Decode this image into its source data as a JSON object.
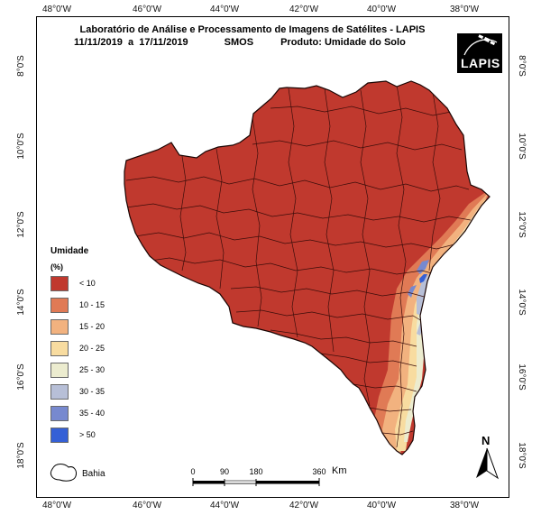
{
  "header": {
    "title": "Laboratório de Análise e Processamento de Imagens de Satélites - LAPIS",
    "period_start": "11/11/2019",
    "period_sep": "a",
    "period_end": "17/11/2019",
    "sensor": "SMOS",
    "product": "Produto: Umidade do Solo"
  },
  "logo": {
    "text": "LAPIS"
  },
  "axes": {
    "longitude_ticks": [
      "48°0'W",
      "46°0'W",
      "44°0'W",
      "42°0'W",
      "40°0'W",
      "38°0'W"
    ],
    "latitude_ticks": [
      "8°0'S",
      "10°0'S",
      "12°0'S",
      "14°0'S",
      "16°0'S",
      "18°0'S"
    ]
  },
  "legend": {
    "title": "Umidade",
    "unit": "(%)",
    "classes": [
      {
        "label": "< 10",
        "color": "#c0392e"
      },
      {
        "label": "10 - 15",
        "color": "#e07a55"
      },
      {
        "label": "15 - 20",
        "color": "#f2b27f"
      },
      {
        "label": "20 - 25",
        "color": "#f8dca0"
      },
      {
        "label": "25 - 30",
        "color": "#ececcf"
      },
      {
        "label": "30 - 35",
        "color": "#b7bfd7"
      },
      {
        "label": "35 - 40",
        "color": "#7789cf"
      },
      {
        "label": "> 50",
        "color": "#3560d6"
      }
    ]
  },
  "inset": {
    "label": "Bahia"
  },
  "scale_bar": {
    "ticks": [
      "0",
      "90",
      "180",
      "360"
    ],
    "unit": "Km"
  },
  "north_arrow": {
    "label": "N"
  }
}
